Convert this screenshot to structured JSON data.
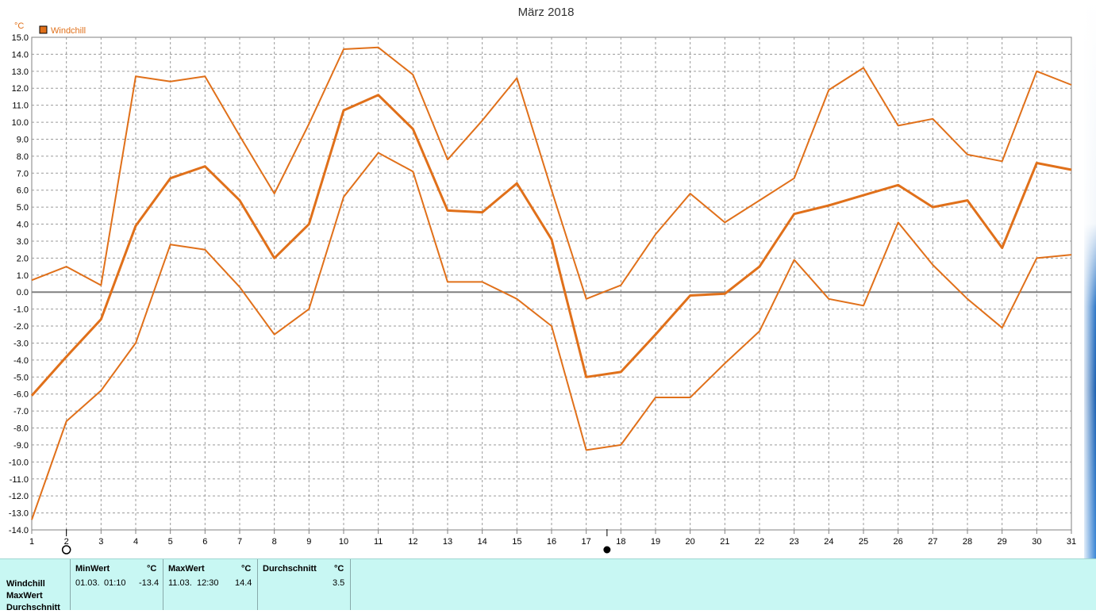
{
  "chart_data": {
    "type": "line",
    "title": "März 2018",
    "unit_label": "°C",
    "legend": [
      {
        "name": "Windchill",
        "color": "#e0701a"
      }
    ],
    "x": [
      1,
      2,
      3,
      4,
      5,
      6,
      7,
      8,
      9,
      10,
      11,
      12,
      13,
      14,
      15,
      16,
      17,
      18,
      19,
      20,
      21,
      22,
      23,
      24,
      25,
      26,
      27,
      28,
      29,
      30,
      31
    ],
    "ylim": [
      -14.0,
      15.0
    ],
    "ytick_step": 1.0,
    "grid": true,
    "series": [
      {
        "name": "Windchill",
        "role": "max",
        "values": [
          0.7,
          1.5,
          0.4,
          12.7,
          12.4,
          12.7,
          9.2,
          5.8,
          9.9,
          14.3,
          14.4,
          12.8,
          7.8,
          10.1,
          12.6,
          6.0,
          -0.4,
          0.4,
          3.4,
          5.8,
          4.1,
          5.4,
          6.7,
          11.9,
          13.2,
          9.8,
          10.2,
          8.1,
          7.7,
          13.0,
          12.2
        ]
      },
      {
        "name": "Windchill",
        "role": "avg",
        "values": [
          -6.1,
          -3.8,
          -1.6,
          3.9,
          6.7,
          7.4,
          5.4,
          2.0,
          4.0,
          10.7,
          11.6,
          9.6,
          4.8,
          4.7,
          6.4,
          3.1,
          -5.0,
          -4.7,
          -2.5,
          -0.2,
          -0.1,
          1.5,
          4.6,
          5.1,
          5.7,
          6.3,
          5.0,
          5.4,
          2.6,
          7.6,
          7.2
        ]
      },
      {
        "name": "Windchill",
        "role": "min",
        "values": [
          -13.4,
          -7.6,
          -5.8,
          -3.0,
          2.8,
          2.5,
          0.3,
          -2.5,
          -1.0,
          5.6,
          8.2,
          7.1,
          0.6,
          0.6,
          -0.4,
          -2.0,
          -9.3,
          -9.0,
          -6.2,
          -6.2,
          -4.2,
          -2.3,
          1.9,
          -0.4,
          -0.8,
          4.1,
          1.6,
          -0.4,
          -2.1,
          2.0,
          2.2
        ]
      }
    ],
    "line_color": "#e0701a",
    "markers": {
      "circle_near_x": 2,
      "dot_near_x": 17.6
    }
  },
  "stats_panel": {
    "row_labels": [
      "Windchill",
      "MaxWert",
      "Durchschnitt"
    ],
    "min": {
      "header": "MinWert",
      "unit": "°C",
      "date": "01.03.",
      "time": "01:10",
      "value": "-13.4"
    },
    "max": {
      "header": "MaxWert",
      "unit": "°C",
      "date": "11.03.",
      "time": "12:30",
      "value": "14.4"
    },
    "avg": {
      "header": "Durchschnitt",
      "unit": "°C",
      "value": "3.5"
    },
    "background": "#c8f7f3"
  }
}
